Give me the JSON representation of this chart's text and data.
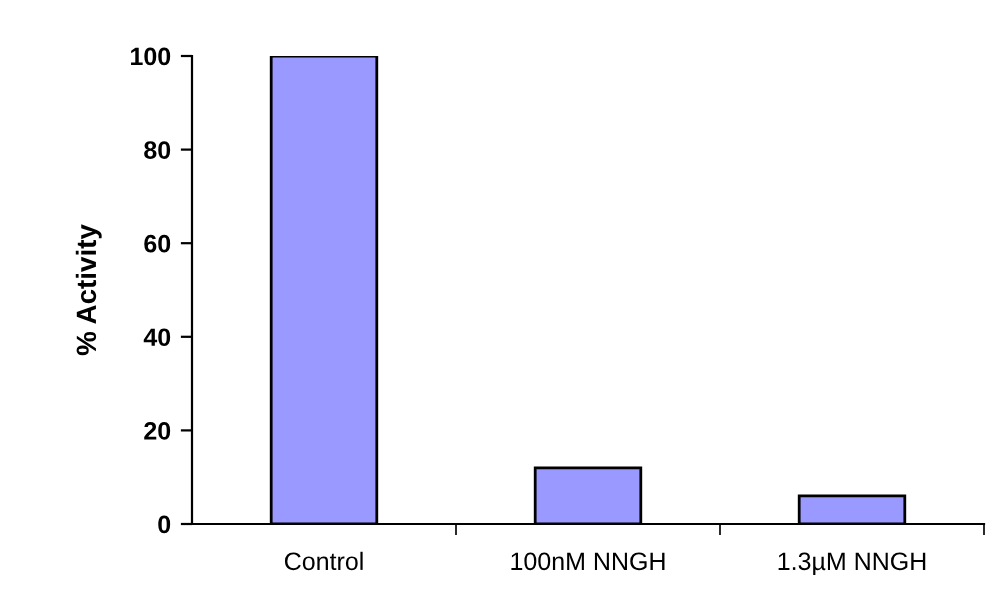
{
  "chart_data": {
    "type": "bar",
    "ylabel": "% Activity",
    "categories": [
      "Control",
      "100nM NNGH",
      "1.3µM NNGH"
    ],
    "values": [
      100,
      12,
      6
    ],
    "color": "#9999ff",
    "ylim": [
      0,
      100
    ],
    "yticks": [
      0,
      20,
      40,
      60,
      80,
      100
    ],
    "grid": false
  }
}
